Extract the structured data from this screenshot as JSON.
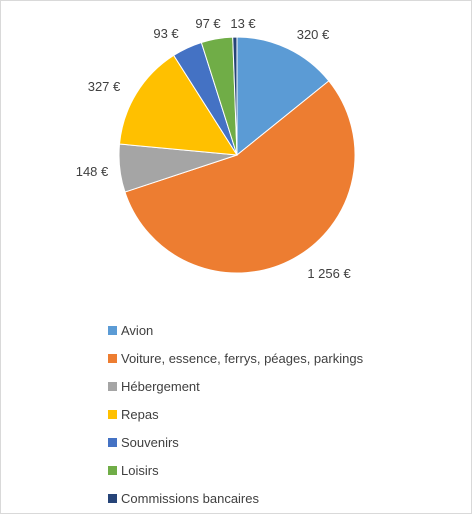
{
  "chart_data": {
    "type": "pie",
    "title": "",
    "series": [
      {
        "name": "Avion",
        "value": 320,
        "label": "320 €",
        "color": "#5B9BD5"
      },
      {
        "name": "Voiture, essence, ferrys, péages, parkings",
        "value": 1256,
        "label": "1 256 €",
        "color": "#ED7D31"
      },
      {
        "name": "Hébergement",
        "value": 148,
        "label": "148 €",
        "color": "#A5A5A5"
      },
      {
        "name": "Repas",
        "value": 327,
        "label": "327 €",
        "color": "#FFC000"
      },
      {
        "name": "Souvenirs",
        "value": 93,
        "label": "93 €",
        "color": "#4472C4"
      },
      {
        "name": "Loisirs",
        "value": 97,
        "label": "97 €",
        "color": "#70AD47"
      },
      {
        "name": "Commissions bancaires",
        "value": 13,
        "label": "13 €",
        "color": "#264478"
      }
    ],
    "legend_position": "bottom",
    "slice_start": "top, clockwise"
  }
}
